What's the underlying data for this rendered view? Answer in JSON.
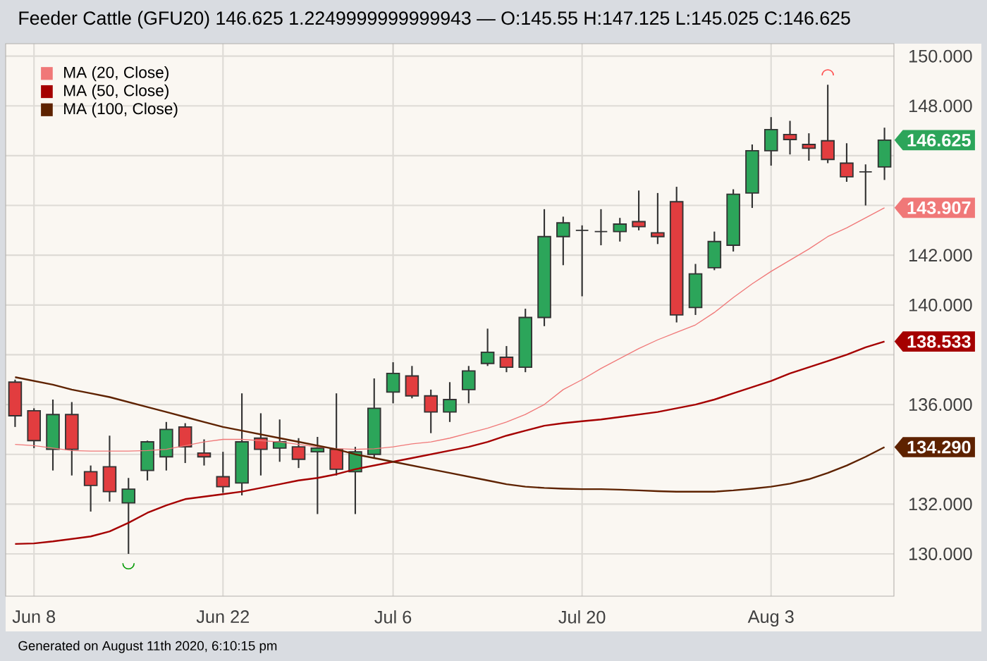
{
  "chart_data": {
    "type": "candlestick",
    "title": "Feeder Cattle (GFU20) 146.625 1.2249999999999943 — O:145.55 H:147.125 L:145.025 C:146.625",
    "categories": [
      null,
      "Jun 8",
      null,
      null,
      null,
      null,
      null,
      null,
      null,
      null,
      null,
      "Jun 22",
      null,
      null,
      null,
      null,
      null,
      null,
      null,
      null,
      "Jul 6",
      null,
      null,
      null,
      null,
      null,
      null,
      null,
      null,
      null,
      "Jul 20",
      null,
      null,
      null,
      null,
      null,
      null,
      null,
      null,
      null,
      "Aug 3",
      null,
      null,
      null,
      null,
      null,
      null
    ],
    "ohlc": [
      [
        136.9,
        137.0,
        135.1,
        135.55
      ],
      [
        135.75,
        135.85,
        134.25,
        134.55
      ],
      [
        134.2,
        136.2,
        133.35,
        135.6
      ],
      [
        135.6,
        136.1,
        133.15,
        134.2
      ],
      [
        133.3,
        133.55,
        131.7,
        132.75
      ],
      [
        133.5,
        134.75,
        132.1,
        132.5
      ],
      [
        132.05,
        133.05,
        130.0,
        132.6
      ],
      [
        133.35,
        134.55,
        132.95,
        134.5
      ],
      [
        133.9,
        135.3,
        133.35,
        135.0
      ],
      [
        135.1,
        135.25,
        133.65,
        134.3
      ],
      [
        134.05,
        134.6,
        133.55,
        133.9
      ],
      [
        133.1,
        134.1,
        132.45,
        132.7
      ],
      [
        132.85,
        136.45,
        132.35,
        134.5
      ],
      [
        134.65,
        135.65,
        133.15,
        134.2
      ],
      [
        134.25,
        135.4,
        133.7,
        134.5
      ],
      [
        134.3,
        134.65,
        133.45,
        133.8
      ],
      [
        134.1,
        134.7,
        131.6,
        134.25
      ],
      [
        134.2,
        136.45,
        133.15,
        133.4
      ],
      [
        133.3,
        134.3,
        131.6,
        134.1
      ],
      [
        134.0,
        137.05,
        133.85,
        135.85
      ],
      [
        136.5,
        137.7,
        136.05,
        137.25
      ],
      [
        137.15,
        137.55,
        136.25,
        136.35
      ],
      [
        136.35,
        136.6,
        134.85,
        135.7
      ],
      [
        135.7,
        136.9,
        135.3,
        136.2
      ],
      [
        136.6,
        137.55,
        136.05,
        137.35
      ],
      [
        137.65,
        139.05,
        137.55,
        138.1
      ],
      [
        137.9,
        138.35,
        137.3,
        137.5
      ],
      [
        137.5,
        139.85,
        137.3,
        139.5
      ],
      [
        139.5,
        143.85,
        139.15,
        142.75
      ],
      [
        142.75,
        143.55,
        141.6,
        143.3
      ],
      [
        143.0,
        143.2,
        140.35,
        143.0
      ],
      [
        142.95,
        143.85,
        142.4,
        142.95
      ],
      [
        142.95,
        143.5,
        142.55,
        143.25
      ],
      [
        143.35,
        144.6,
        143.0,
        143.15
      ],
      [
        142.9,
        144.5,
        142.45,
        142.75
      ],
      [
        144.15,
        144.75,
        139.3,
        139.6
      ],
      [
        139.9,
        141.65,
        139.6,
        141.25
      ],
      [
        141.5,
        142.95,
        141.4,
        142.55
      ],
      [
        142.4,
        144.65,
        142.15,
        144.45
      ],
      [
        144.5,
        146.45,
        143.9,
        146.2
      ],
      [
        146.2,
        147.55,
        145.6,
        147.05
      ],
      [
        146.85,
        147.4,
        146.05,
        146.65
      ],
      [
        146.45,
        146.9,
        145.8,
        146.3
      ],
      [
        146.6,
        148.85,
        145.7,
        145.85
      ],
      [
        145.7,
        146.5,
        144.95,
        145.15
      ],
      [
        145.35,
        145.65,
        144.0,
        145.35
      ],
      [
        145.55,
        147.125,
        145.025,
        146.625
      ]
    ],
    "colors": [
      "#e23d3f",
      "#e23d3f",
      "#2ca55a",
      "#e23d3f",
      "#e23d3f",
      "#e23d3f",
      "#2ca55a",
      "#2ca55a",
      "#2ca55a",
      "#e23d3f",
      "#e23d3f",
      "#e23d3f",
      "#2ca55a",
      "#e23d3f",
      "#2ca55a",
      "#e23d3f",
      "#2ca55a",
      "#e23d3f",
      "#2ca55a",
      "#2ca55a",
      "#2ca55a",
      "#e23d3f",
      "#e23d3f",
      "#2ca55a",
      "#2ca55a",
      "#2ca55a",
      "#e23d3f",
      "#2ca55a",
      "#2ca55a",
      "#2ca55a",
      "#333333",
      "#333333",
      "#2ca55a",
      "#e23d3f",
      "#e23d3f",
      "#e23d3f",
      "#2ca55a",
      "#2ca55a",
      "#2ca55a",
      "#2ca55a",
      "#2ca55a",
      "#e23d3f",
      "#e23d3f",
      "#e23d3f",
      "#e23d3f",
      "#333333",
      "#2ca55a"
    ],
    "series": [
      {
        "name": "MA (20, Close)",
        "type": "line",
        "color": "#f07878",
        "values": [
          134.4,
          134.35,
          134.25,
          134.15,
          134.13,
          134.13,
          134.13,
          134.15,
          134.2,
          134.35,
          134.5,
          134.6,
          134.6,
          134.55,
          134.5,
          134.4,
          134.3,
          134.23,
          134.2,
          134.22,
          134.3,
          134.42,
          134.5,
          134.65,
          134.85,
          135.05,
          135.3,
          135.6,
          136.0,
          136.6,
          137.0,
          137.45,
          137.85,
          138.25,
          138.6,
          138.9,
          139.2,
          139.7,
          140.3,
          140.85,
          141.35,
          141.8,
          142.25,
          142.75,
          143.1,
          143.5,
          143.907
        ],
        "value_labels": [
          null,
          null,
          null,
          null,
          null,
          null,
          null,
          null,
          null,
          null,
          null,
          null,
          null,
          null,
          null,
          null,
          null,
          null,
          null,
          null,
          null,
          null,
          null,
          null,
          null,
          null,
          null,
          null,
          null,
          null,
          null,
          null,
          null,
          null,
          null,
          null,
          null,
          null,
          null,
          null,
          null,
          null,
          null,
          null,
          null,
          null,
          "143.907"
        ]
      },
      {
        "name": "MA (50, Close)",
        "type": "line",
        "color": "#a50000",
        "values": [
          130.4,
          130.42,
          130.5,
          130.6,
          130.7,
          130.9,
          131.25,
          131.65,
          131.95,
          132.2,
          132.3,
          132.4,
          132.5,
          132.65,
          132.8,
          132.95,
          133.05,
          133.2,
          133.4,
          133.55,
          133.7,
          133.85,
          134.0,
          134.15,
          134.3,
          134.5,
          134.75,
          134.95,
          135.15,
          135.25,
          135.33,
          135.4,
          135.5,
          135.6,
          135.7,
          135.85,
          136.0,
          136.2,
          136.45,
          136.7,
          136.95,
          137.25,
          137.5,
          137.75,
          138.0,
          138.3,
          138.533
        ],
        "value_labels": [
          null,
          null,
          null,
          null,
          null,
          null,
          null,
          null,
          null,
          null,
          null,
          null,
          null,
          null,
          null,
          null,
          null,
          null,
          null,
          null,
          null,
          null,
          null,
          null,
          null,
          null,
          null,
          null,
          null,
          null,
          null,
          null,
          null,
          null,
          null,
          null,
          null,
          null,
          null,
          null,
          null,
          null,
          null,
          null,
          null,
          null,
          "138.533"
        ]
      },
      {
        "name": "MA (100, Close)",
        "type": "line",
        "color": "#5e2200",
        "values": [
          137.1,
          136.95,
          136.8,
          136.6,
          136.45,
          136.3,
          136.1,
          135.9,
          135.7,
          135.5,
          135.3,
          135.1,
          134.95,
          134.8,
          134.65,
          134.5,
          134.35,
          134.2,
          134.0,
          133.85,
          133.7,
          133.55,
          133.4,
          133.25,
          133.1,
          132.95,
          132.8,
          132.7,
          132.65,
          132.62,
          132.6,
          132.6,
          132.58,
          132.55,
          132.52,
          132.5,
          132.5,
          132.5,
          132.55,
          132.62,
          132.7,
          132.82,
          133.0,
          133.25,
          133.55,
          133.9,
          134.29
        ],
        "value_labels": [
          null,
          null,
          null,
          null,
          null,
          null,
          null,
          null,
          null,
          null,
          null,
          null,
          null,
          null,
          null,
          null,
          null,
          null,
          null,
          null,
          null,
          null,
          null,
          null,
          null,
          null,
          null,
          null,
          null,
          null,
          null,
          null,
          null,
          null,
          null,
          null,
          null,
          null,
          null,
          null,
          null,
          null,
          null,
          null,
          null,
          null,
          "134.290"
        ]
      }
    ],
    "ylim": [
      128.3,
      150.5
    ],
    "yticks": [
      {
        "value": 130,
        "label": "130.000"
      },
      {
        "value": 132,
        "label": "132.000"
      },
      {
        "value": 134,
        "label": null
      },
      {
        "value": 136,
        "label": "136.000"
      },
      {
        "value": 138,
        "label": null
      },
      {
        "value": 140,
        "label": "140.000"
      },
      {
        "value": 142,
        "label": "142.000"
      },
      {
        "value": 144,
        "label": null
      },
      {
        "value": 146,
        "label": null
      },
      {
        "value": 148,
        "label": "148.000"
      },
      {
        "value": 150,
        "label": "150.000"
      }
    ],
    "grid": true,
    "legend": "top left",
    "annotations": [
      "Generated on August 11th 2020, 6:10:15 pm",
      "146.625"
    ]
  }
}
